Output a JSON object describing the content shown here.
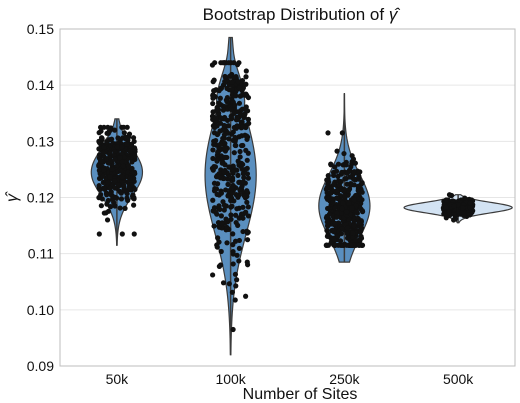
{
  "chart_data": {
    "type": "violin",
    "title": "Bootstrap Distribution of ",
    "title_symbol": "γ̂",
    "xlabel": "Number of Sites",
    "ylabel": "γ̂",
    "categories": [
      "50k",
      "100k",
      "250k",
      "500k"
    ],
    "ylim": [
      0.09,
      0.15
    ],
    "yticks": [
      "0.09",
      "0.10",
      "0.11",
      "0.12",
      "0.13",
      "0.14",
      "0.15"
    ],
    "grid": true,
    "colors": {
      "violin": "#5a8fbf",
      "violin_light": "#d3e3f3",
      "outline": "#3b3b3b",
      "points": "#111111"
    },
    "series": [
      {
        "category": "50k",
        "center": 0.1245,
        "min": 0.1115,
        "max": 0.134,
        "density_peak": 0.129,
        "width": 0.45,
        "points_min": 0.1135,
        "points_max": 0.1325,
        "n_points": 360
      },
      {
        "category": "100k",
        "center": 0.124,
        "min": 0.092,
        "max": 0.1485,
        "density_peak": 0.137,
        "width": 0.45,
        "points_min": 0.0965,
        "points_max": 0.144,
        "n_points": 420
      },
      {
        "category": "250k",
        "center": 0.1185,
        "min": 0.1085,
        "max": 0.1385,
        "density_peak": 0.116,
        "width": 0.45,
        "points_min": 0.1115,
        "points_max": 0.1315,
        "n_points": 380
      },
      {
        "category": "500k",
        "center": 0.1182,
        "min": 0.1155,
        "max": 0.1205,
        "density_peak": 0.1182,
        "width": 0.95,
        "points_min": 0.116,
        "points_max": 0.1205,
        "n_points": 320
      }
    ]
  }
}
